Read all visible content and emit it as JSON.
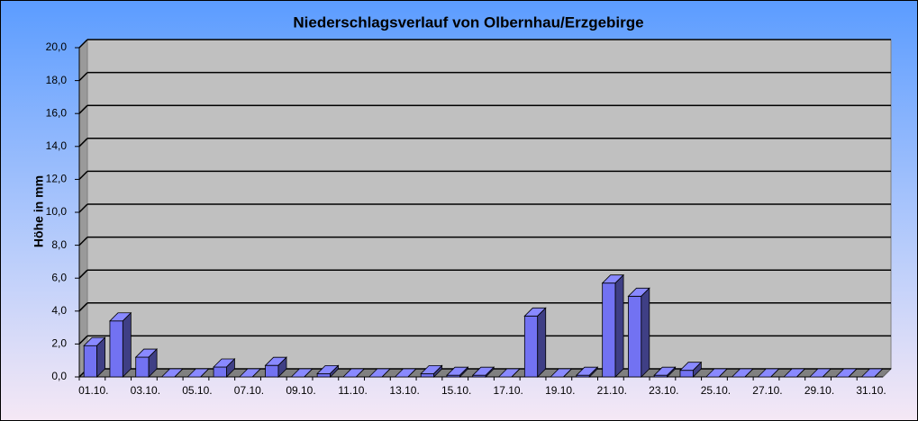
{
  "chart_data": {
    "type": "bar3d",
    "title": "Niederschlagsverlauf von Olbernhau/Erzgebirge",
    "y_label": "Höhe in  mm",
    "categories": [
      "01.10.",
      null,
      "03.10.",
      null,
      "05.10.",
      null,
      "07.10.",
      null,
      "09.10.",
      null,
      "11.10.",
      null,
      "13.10.",
      null,
      "15.10.",
      null,
      "17.10.",
      null,
      "19.10.",
      null,
      "21.10.",
      null,
      "23.10.",
      null,
      "25.10.",
      null,
      "27.10.",
      null,
      "29.10.",
      null,
      "31.10."
    ],
    "values": [
      1.9,
      3.4,
      1.2,
      0,
      0,
      0.6,
      0,
      0.7,
      0,
      0.2,
      0,
      0,
      0,
      0.2,
      0.1,
      0.1,
      0,
      3.7,
      0,
      0.1,
      5.7,
      4.9,
      0.1,
      0.4,
      0,
      0,
      0,
      0,
      0,
      0,
      0
    ],
    "color": "#7272f2",
    "ylim": [
      0,
      20
    ],
    "yticks": [
      {
        "value": 0,
        "label": "0,0"
      },
      {
        "value": 2,
        "label": "2,0"
      },
      {
        "value": 4,
        "label": "4,0"
      },
      {
        "value": 6,
        "label": "6,0"
      },
      {
        "value": 8,
        "label": "8,0"
      },
      {
        "value": 10,
        "label": "10,0"
      },
      {
        "value": 12,
        "label": "12,0"
      },
      {
        "value": 14,
        "label": "14,0"
      },
      {
        "value": 16,
        "label": "16,0"
      },
      {
        "value": 18,
        "label": "18,0"
      },
      {
        "value": 20,
        "label": "20,0"
      }
    ],
    "grid": true
  }
}
